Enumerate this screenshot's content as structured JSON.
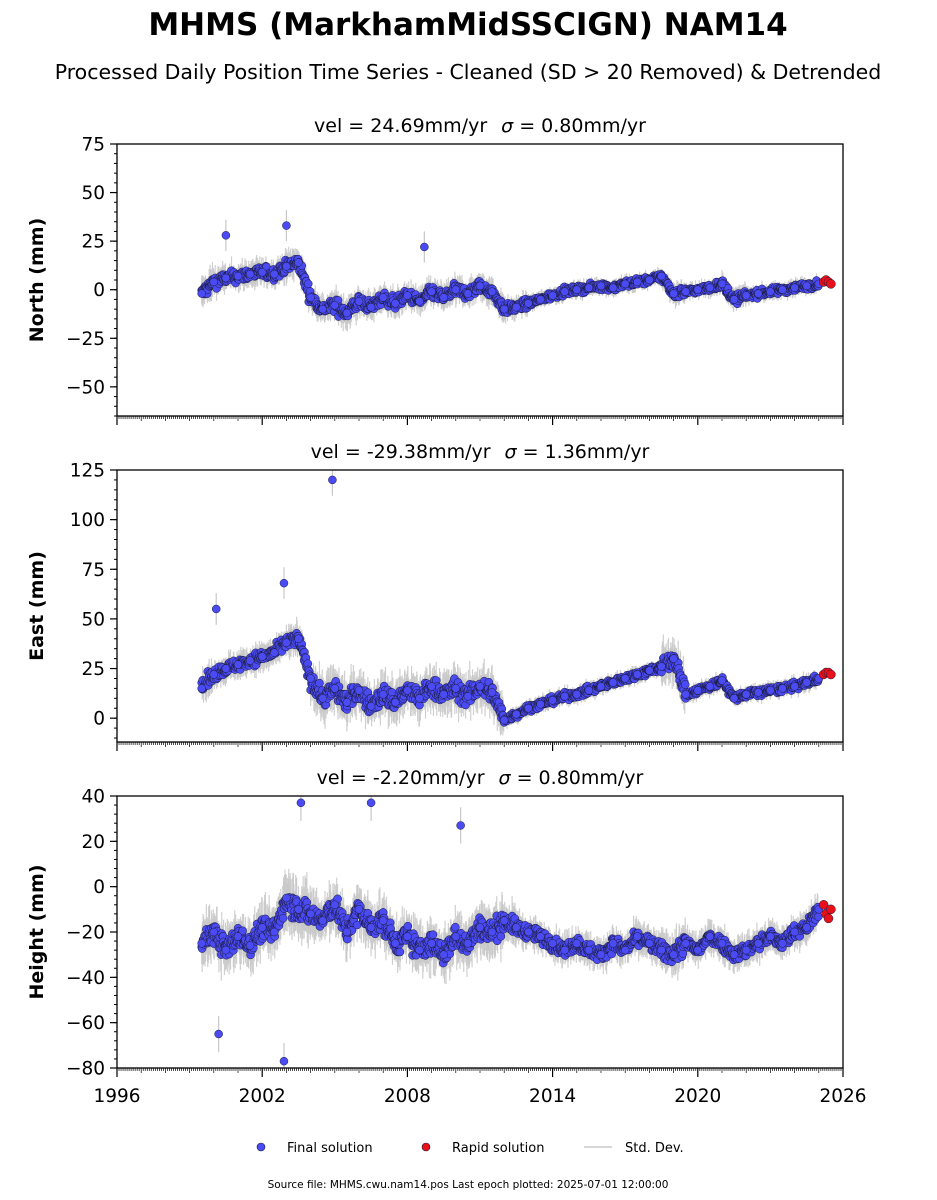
{
  "figure": {
    "title": "MHMS (MarkhamMidSSCIGN) NAM14",
    "subtitle": "Processed Daily Position Time Series - Cleaned (SD > 20 Removed) & Detrended",
    "footer": "Source file: MHMS.cwu.nam14.pos  Last epoch plotted: 2025-07-01 12:00:00"
  },
  "legend": {
    "final": "Final solution",
    "rapid": "Rapid solution",
    "std": "Std. Dev."
  },
  "colors": {
    "final": "#4b4bf5",
    "rapid": "#e8101a",
    "std": "#c8c8c8",
    "marker_edge": "#1a1a3a"
  },
  "chart_data": [
    {
      "type": "scatter",
      "panel": "north",
      "title_prefix": "vel = 24.69mm/yr",
      "title_sigma": " = 0.80mm/yr",
      "ylabel": "North (mm)",
      "xlim": [
        1996,
        2026
      ],
      "ylim": [
        -65,
        75
      ],
      "yticks": [
        -50,
        -25,
        0,
        25,
        50,
        75
      ],
      "xticks": [],
      "series": [
        {
          "name": "Final solution",
          "x": [
            1999.5,
            2000.0,
            2000.5,
            2001.0,
            2001.5,
            2002.0,
            2002.5,
            2003.0,
            2003.5,
            2004.0,
            2004.5,
            2005.0,
            2005.5,
            2006.0,
            2006.5,
            2007.0,
            2007.5,
            2008.0,
            2008.5,
            2009.0,
            2009.5,
            2010.0,
            2010.5,
            2011.0,
            2011.5,
            2012.0,
            2012.5,
            2013.0,
            2013.5,
            2014.0,
            2014.5,
            2015.0,
            2015.5,
            2016.0,
            2016.5,
            2017.0,
            2017.5,
            2018.0,
            2018.5,
            2019.0,
            2019.5,
            2020.0,
            2020.5,
            2021.0,
            2021.5,
            2022.0,
            2022.5,
            2023.0,
            2023.5,
            2024.0,
            2024.5,
            2025.0
          ],
          "y": [
            -2,
            4,
            6,
            7,
            8,
            9,
            8,
            12,
            14,
            -4,
            -10,
            -8,
            -12,
            -6,
            -9,
            -4,
            -7,
            -3,
            -6,
            -1,
            -4,
            0,
            -2,
            2,
            -1,
            -10,
            -9,
            -7,
            -5,
            -3,
            -1,
            0,
            1,
            2,
            1,
            3,
            4,
            5,
            7,
            -2,
            -1,
            0,
            1,
            3,
            -5,
            -3,
            -2,
            -1,
            0,
            1,
            2,
            3
          ],
          "sd": [
            6,
            5,
            5,
            5,
            5,
            5,
            5,
            6,
            6,
            5,
            5,
            6,
            6,
            5,
            5,
            5,
            5,
            5,
            5,
            5,
            5,
            5,
            5,
            5,
            5,
            4,
            4,
            3,
            3,
            3,
            3,
            3,
            3,
            3,
            3,
            3,
            3,
            3,
            4,
            4,
            3,
            3,
            3,
            4,
            4,
            3,
            3,
            3,
            3,
            3,
            3,
            3
          ]
        },
        {
          "name": "Rapid solution",
          "x": [
            2025.2,
            2025.3,
            2025.4,
            2025.5
          ],
          "y": [
            4,
            5,
            4,
            3
          ]
        }
      ],
      "extremes": [
        {
          "x": 2003.0,
          "y": 33
        },
        {
          "x": 2000.5,
          "y": 28
        },
        {
          "x": 2008.7,
          "y": 22
        }
      ]
    },
    {
      "type": "scatter",
      "panel": "east",
      "title_prefix": "vel = -29.38mm/yr",
      "title_sigma": " = 1.36mm/yr",
      "ylabel": "East (mm)",
      "xlim": [
        1996,
        2026
      ],
      "ylim": [
        -12,
        125
      ],
      "yticks": [
        0,
        25,
        50,
        75,
        100,
        125
      ],
      "xticks": [],
      "series": [
        {
          "name": "Final solution",
          "x": [
            1999.5,
            2000.0,
            2000.5,
            2001.0,
            2001.5,
            2002.0,
            2002.5,
            2003.0,
            2003.5,
            2004.0,
            2004.5,
            2005.0,
            2005.5,
            2006.0,
            2006.5,
            2007.0,
            2007.5,
            2008.0,
            2008.5,
            2009.0,
            2009.5,
            2010.0,
            2010.5,
            2011.0,
            2011.5,
            2012.0,
            2012.5,
            2013.0,
            2013.5,
            2014.0,
            2014.5,
            2015.0,
            2015.5,
            2016.0,
            2016.5,
            2017.0,
            2017.5,
            2018.0,
            2018.5,
            2019.0,
            2019.5,
            2020.0,
            2020.5,
            2021.0,
            2021.5,
            2022.0,
            2022.5,
            2023.0,
            2023.5,
            2024.0,
            2024.5,
            2025.0
          ],
          "y": [
            15,
            22,
            25,
            27,
            29,
            31,
            33,
            38,
            40,
            20,
            10,
            15,
            8,
            14,
            6,
            12,
            8,
            14,
            10,
            16,
            12,
            15,
            11,
            16,
            13,
            -1,
            2,
            5,
            7,
            9,
            11,
            12,
            14,
            16,
            18,
            20,
            22,
            24,
            26,
            30,
            12,
            14,
            16,
            19,
            10,
            12,
            13,
            14,
            15,
            16,
            18,
            20
          ],
          "sd": [
            6,
            5,
            5,
            5,
            5,
            5,
            5,
            6,
            6,
            8,
            8,
            8,
            8,
            8,
            8,
            8,
            8,
            8,
            8,
            8,
            8,
            8,
            8,
            8,
            8,
            3,
            3,
            3,
            3,
            3,
            3,
            3,
            3,
            3,
            3,
            3,
            3,
            3,
            8,
            8,
            3,
            3,
            3,
            3,
            3,
            3,
            3,
            3,
            3,
            3,
            3,
            3
          ]
        },
        {
          "name": "Rapid solution",
          "x": [
            2025.2,
            2025.3,
            2025.4,
            2025.5
          ],
          "y": [
            22,
            23,
            23,
            22
          ]
        }
      ],
      "extremes": [
        {
          "x": 2004.9,
          "y": 120
        },
        {
          "x": 2002.9,
          "y": 68
        },
        {
          "x": 2000.1,
          "y": 55
        }
      ]
    },
    {
      "type": "scatter",
      "panel": "height",
      "title_prefix": "vel = -2.20mm/yr",
      "title_sigma": " = 0.80mm/yr",
      "ylabel": "Height (mm)",
      "xlim": [
        1996,
        2026
      ],
      "ylim": [
        -80,
        40
      ],
      "yticks": [
        -80,
        -60,
        -40,
        -20,
        0,
        20,
        40
      ],
      "xticks": [
        "1996",
        "2002",
        "2008",
        "2014",
        "2020",
        "2026"
      ],
      "series": [
        {
          "name": "Final solution",
          "x": [
            1999.5,
            2000.0,
            2000.5,
            2001.0,
            2001.5,
            2002.0,
            2002.5,
            2003.0,
            2003.5,
            2004.0,
            2004.5,
            2005.0,
            2005.5,
            2006.0,
            2006.5,
            2007.0,
            2007.5,
            2008.0,
            2008.5,
            2009.0,
            2009.5,
            2010.0,
            2010.5,
            2011.0,
            2011.5,
            2012.0,
            2012.5,
            2013.0,
            2013.5,
            2014.0,
            2014.5,
            2015.0,
            2015.5,
            2016.0,
            2016.5,
            2017.0,
            2017.5,
            2018.0,
            2018.5,
            2019.0,
            2019.5,
            2020.0,
            2020.5,
            2021.0,
            2021.5,
            2022.0,
            2022.5,
            2023.0,
            2023.5,
            2024.0,
            2024.5,
            2025.0
          ],
          "y": [
            -25,
            -20,
            -28,
            -22,
            -26,
            -18,
            -20,
            -5,
            -10,
            -12,
            -15,
            -8,
            -20,
            -10,
            -18,
            -15,
            -25,
            -22,
            -28,
            -25,
            -30,
            -22,
            -25,
            -18,
            -20,
            -15,
            -18,
            -20,
            -22,
            -25,
            -28,
            -25,
            -28,
            -30,
            -25,
            -28,
            -22,
            -25,
            -28,
            -30,
            -25,
            -28,
            -22,
            -25,
            -30,
            -28,
            -25,
            -22,
            -25,
            -20,
            -18,
            -10
          ],
          "sd": [
            8,
            8,
            8,
            8,
            8,
            8,
            9,
            9,
            9,
            8,
            8,
            8,
            8,
            8,
            8,
            8,
            8,
            8,
            8,
            8,
            8,
            8,
            8,
            8,
            8,
            6,
            5,
            5,
            5,
            5,
            5,
            5,
            5,
            5,
            5,
            5,
            5,
            5,
            7,
            7,
            5,
            5,
            5,
            5,
            5,
            5,
            5,
            5,
            5,
            5,
            5,
            5
          ]
        },
        {
          "name": "Rapid solution",
          "x": [
            2025.2,
            2025.3,
            2025.4,
            2025.5
          ],
          "y": [
            -8,
            -12,
            -14,
            -10
          ]
        }
      ],
      "extremes": [
        {
          "x": 2002.9,
          "y": -77
        },
        {
          "x": 2003.6,
          "y": 37
        },
        {
          "x": 2006.5,
          "y": 37
        },
        {
          "x": 2010.2,
          "y": 27
        },
        {
          "x": 2000.2,
          "y": -65
        }
      ]
    }
  ]
}
